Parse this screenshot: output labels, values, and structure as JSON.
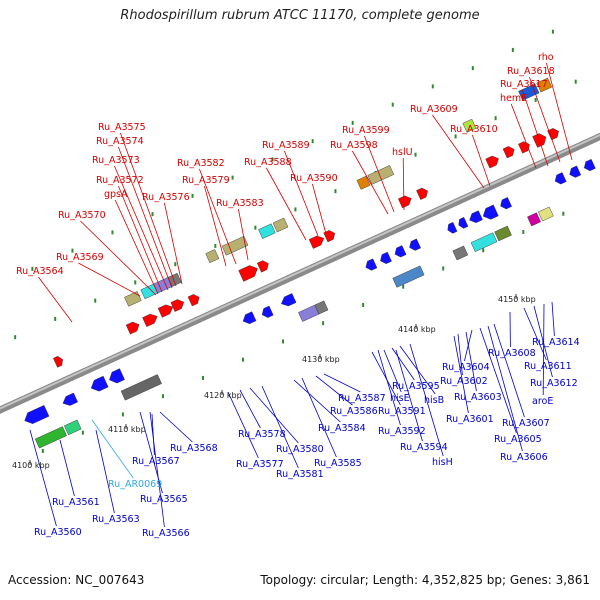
{
  "title": "Rhodospirillum rubrum ATCC 11170, complete genome",
  "footer": {
    "accession": "Accession: NC_007643",
    "topology": "Topology: circular; Length: 4,352,825 bp; Genes: 3,861"
  },
  "colors": {
    "forward_label": "#d40000",
    "reverse_label": "#0000c8",
    "rna_label": "#2aa9e0",
    "forward_gene": "#ff0000",
    "reverse_gene": "#1010ff",
    "backbone": "#8a8a8a",
    "tick": "#2d8a2d"
  },
  "ticks": [
    "4100 kbp",
    "4110 kbp",
    "4120 kbp",
    "4130 kbp",
    "4140 kbp",
    "4150 kbp"
  ],
  "forward_labels": [
    "Ru_A3564",
    "Ru_A3569",
    "Ru_A3570",
    "gpsA",
    "Ru_A3572",
    "Ru_A3573",
    "Ru_A3574",
    "Ru_A3575",
    "Ru_A3576",
    "Ru_A3579",
    "Ru_A3582",
    "Ru_A3583",
    "Ru_A3588",
    "Ru_A3589",
    "Ru_A3590",
    "Ru_A3598",
    "Ru_A3599",
    "hslU",
    "Ru_A3609",
    "Ru_A3610",
    "hemE",
    "Ru_A3617",
    "Ru_A3618",
    "rho"
  ],
  "reverse_labels": [
    "Ru_A3560",
    "Ru_A3561",
    "Ru_AR0069",
    "Ru_A3563",
    "Ru_A3565",
    "Ru_A3566",
    "Ru_A3567",
    "Ru_A3568",
    "Ru_A3577",
    "Ru_A3578",
    "Ru_A3580",
    "Ru_A3581",
    "Ru_A3584",
    "Ru_A3585",
    "Ru_A3586",
    "Ru_A3587",
    "Ru_A3591",
    "Ru_A3592",
    "hisE",
    "Ru_A3595",
    "hisB",
    "Ru_A3594",
    "hisH",
    "Ru_A3601",
    "Ru_A3602",
    "Ru_A3603",
    "Ru_A3604",
    "Ru_A3605",
    "Ru_A3606",
    "Ru_A3607",
    "Ru_A3608",
    "Ru_A3611",
    "Ru_A3612",
    "aroE",
    "Ru_A3614"
  ]
}
